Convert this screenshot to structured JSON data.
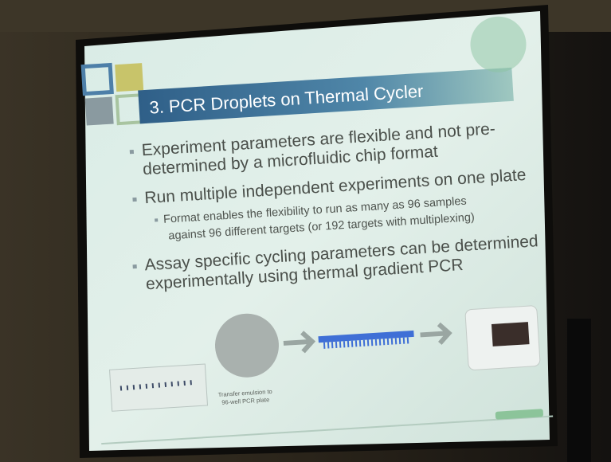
{
  "slide": {
    "title": "3. PCR Droplets on Thermal Cycler",
    "bullets": [
      {
        "lines": [
          "Experiment parameters are flexible and not pre-",
          "determined by a microfluidic chip format"
        ]
      },
      {
        "lines": [
          "Run multiple independent experiments on one plate"
        ],
        "sub": [
          {
            "lines": [
              "Format enables the flexibility to run as many as 96 samples",
              "against 96 different targets (or 192 targets with multiplexing)"
            ]
          }
        ]
      },
      {
        "lines": [
          "Assay specific cycling parameters can be determined",
          "experimentally using thermal gradient PCR"
        ]
      }
    ],
    "caption": {
      "lines": [
        "Transfer emulsion to",
        "96-well PCR plate"
      ]
    }
  }
}
